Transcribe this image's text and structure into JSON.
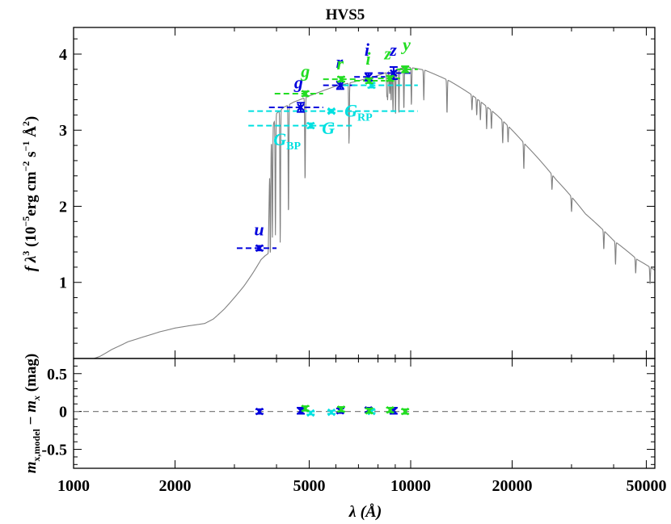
{
  "chart_data": {
    "type": "line",
    "title": "HVS5",
    "colors": {
      "model": "#808080",
      "sdss": "#0000dd",
      "gaia": "#00e0e0",
      "panstarrs": "#22dd22",
      "axis": "#000000"
    },
    "top_panel": {
      "xlim": [
        1000,
        53000
      ],
      "ylim": [
        0.0,
        4.35
      ],
      "xscale": "log",
      "yticks": [
        {
          "v": 1,
          "label": "1"
        },
        {
          "v": 2,
          "label": "2"
        },
        {
          "v": 3,
          "label": "3"
        },
        {
          "v": 4,
          "label": "4"
        }
      ],
      "ylabel": {
        "prefix": "f λ",
        "sup1": "3",
        "mid": " (10",
        "sup2": "−5",
        "mid2": "erg cm",
        "sup3": "−2",
        "mid3": " s",
        "sup4": "−1",
        "mid4": " Å",
        "sup5": "2",
        "suffix": ")"
      },
      "model_continuum": [
        [
          1150,
          0.0
        ],
        [
          1200,
          0.03
        ],
        [
          1300,
          0.12
        ],
        [
          1450,
          0.22
        ],
        [
          1600,
          0.28
        ],
        [
          1800,
          0.35
        ],
        [
          2000,
          0.4
        ],
        [
          2200,
          0.43
        ],
        [
          2450,
          0.46
        ],
        [
          2600,
          0.52
        ],
        [
          2800,
          0.65
        ],
        [
          3000,
          0.8
        ],
        [
          3200,
          0.95
        ],
        [
          3400,
          1.12
        ],
        [
          3600,
          1.3
        ],
        [
          3700,
          1.35
        ],
        [
          3780,
          1.38
        ],
        [
          3820,
          2.6
        ],
        [
          3900,
          3.05
        ],
        [
          4000,
          3.22
        ],
        [
          4200,
          3.3
        ],
        [
          4500,
          3.37
        ],
        [
          5000,
          3.45
        ],
        [
          5500,
          3.52
        ],
        [
          6000,
          3.58
        ],
        [
          7000,
          3.65
        ],
        [
          8000,
          3.72
        ],
        [
          9000,
          3.8
        ],
        [
          9800,
          3.83
        ],
        [
          11000,
          3.79
        ],
        [
          13000,
          3.65
        ],
        [
          15000,
          3.48
        ],
        [
          18000,
          3.2
        ],
        [
          22000,
          2.8
        ],
        [
          27000,
          2.35
        ],
        [
          33000,
          1.9
        ],
        [
          40000,
          1.55
        ],
        [
          47000,
          1.3
        ],
        [
          53000,
          1.16
        ]
      ],
      "model_absorption_lines": [
        {
          "w": 3835,
          "d": 1.35
        },
        {
          "w": 3889,
          "d": 1.4
        },
        {
          "w": 3970,
          "d": 1.55
        },
        {
          "w": 4102,
          "d": 1.75
        },
        {
          "w": 4340,
          "d": 1.45
        },
        {
          "w": 4861,
          "d": 1.1
        },
        {
          "w": 6563,
          "d": 0.8
        },
        {
          "w": 8500,
          "d": 0.3
        },
        {
          "w": 8545,
          "d": 0.35
        },
        {
          "w": 8665,
          "d": 0.3
        },
        {
          "w": 8750,
          "d": 0.4
        },
        {
          "w": 8863,
          "d": 0.55
        },
        {
          "w": 9015,
          "d": 0.6
        },
        {
          "w": 9229,
          "d": 0.6
        },
        {
          "w": 9546,
          "d": 0.55
        },
        {
          "w": 10049,
          "d": 0.5
        },
        {
          "w": 10938,
          "d": 0.4
        },
        {
          "w": 12818,
          "d": 0.45
        },
        {
          "w": 15200,
          "d": 0.2
        },
        {
          "w": 15700,
          "d": 0.22
        },
        {
          "w": 16100,
          "d": 0.25
        },
        {
          "w": 16800,
          "d": 0.3
        },
        {
          "w": 17360,
          "d": 0.25
        },
        {
          "w": 18750,
          "d": 0.3
        },
        {
          "w": 19450,
          "d": 0.22
        },
        {
          "w": 21660,
          "d": 0.35
        },
        {
          "w": 26250,
          "d": 0.2
        },
        {
          "w": 30000,
          "d": 0.2
        },
        {
          "w": 37400,
          "d": 0.25
        },
        {
          "w": 40520,
          "d": 0.3
        },
        {
          "w": 46500,
          "d": 0.2
        },
        {
          "w": 51300,
          "d": 0.22
        }
      ],
      "photometry": [
        {
          "band": "u",
          "system": "sdss",
          "wl": 3560,
          "wmin": 3050,
          "wmax": 4000,
          "y": 1.45,
          "err": 0.03,
          "label_wl": 3550,
          "label_y": 1.62
        },
        {
          "band": "g",
          "system": "sdss",
          "wl": 4720,
          "wmin": 3800,
          "wmax": 5500,
          "y": 3.3,
          "err": 0.06,
          "label_wl": 4650,
          "label_y": 3.55
        },
        {
          "band": "r",
          "system": "sdss",
          "wl": 6180,
          "wmin": 5500,
          "wmax": 7000,
          "y": 3.59,
          "err": 0.05,
          "label_wl": 6150,
          "label_y": 3.82
        },
        {
          "band": "i",
          "system": "sdss",
          "wl": 7500,
          "wmin": 6800,
          "wmax": 8400,
          "y": 3.7,
          "err": 0.05,
          "label_wl": 7420,
          "label_y": 3.98
        },
        {
          "band": "z",
          "system": "sdss",
          "wl": 8900,
          "wmin": 8000,
          "wmax": 10100,
          "y": 3.75,
          "err": 0.08,
          "label_wl": 8880,
          "label_y": 3.98
        },
        {
          "band": "G_BP",
          "system": "gaia",
          "wl": 5050,
          "wmin": 3300,
          "wmax": 6700,
          "y": 3.06,
          "err": 0.03,
          "label_main": "G",
          "label_sub": "BP",
          "label_wl": 4300,
          "label_y": 2.8
        },
        {
          "band": "G",
          "system": "gaia",
          "wl": 5820,
          "wmin": 3300,
          "wmax": 10500,
          "y": 3.25,
          "err": 0.02,
          "label_main": "G",
          "label_sub": "",
          "label_wl": 5700,
          "label_y": 2.95
        },
        {
          "band": "G_RP",
          "system": "gaia",
          "wl": 7650,
          "wmin": 6300,
          "wmax": 10500,
          "y": 3.59,
          "err": 0.03,
          "label_main": "G",
          "label_sub": "RP",
          "label_wl": 7000,
          "label_y": 3.18
        },
        {
          "band": "g",
          "system": "panstarrs",
          "wl": 4870,
          "wmin": 3950,
          "wmax": 5500,
          "y": 3.48,
          "err": 0.03,
          "label_wl": 4870,
          "label_y": 3.7
        },
        {
          "band": "r",
          "system": "panstarrs",
          "wl": 6220,
          "wmin": 5500,
          "wmax": 7000,
          "y": 3.67,
          "err": 0.03,
          "label_wl": 6180,
          "label_y": 3.8
        },
        {
          "band": "i",
          "system": "panstarrs",
          "wl": 7530,
          "wmin": 6800,
          "wmax": 8400,
          "y": 3.65,
          "err": 0.03,
          "label_wl": 7480,
          "label_y": 3.86
        },
        {
          "band": "z",
          "system": "panstarrs",
          "wl": 8690,
          "wmin": 8000,
          "wmax": 9300,
          "y": 3.68,
          "err": 0.03,
          "label_wl": 8550,
          "label_y": 3.93
        },
        {
          "band": "y",
          "system": "panstarrs",
          "wl": 9630,
          "wmin": 9100,
          "wmax": 10500,
          "y": 3.8,
          "err": 0.04,
          "label_wl": 9730,
          "label_y": 4.05
        }
      ]
    },
    "bottom_panel": {
      "xlim": [
        1000,
        53000
      ],
      "ylim": [
        -0.75,
        0.7
      ],
      "yticks": [
        {
          "v": 0.5,
          "label": "0.5"
        },
        {
          "v": 0,
          "label": "0"
        },
        {
          "v": -0.5,
          "label": "-0.5"
        }
      ],
      "ylabel": {
        "m": "m",
        "sub": "x,model",
        "minus": " − ",
        "m2": "m",
        "sub2": "x",
        "unit": " (mag)"
      },
      "residuals": [
        {
          "system": "sdss",
          "wl": 3560,
          "v": 0.0,
          "err": 0.03
        },
        {
          "system": "sdss",
          "wl": 4720,
          "v": 0.01,
          "err": 0.04
        },
        {
          "system": "sdss",
          "wl": 6180,
          "v": 0.01,
          "err": 0.03
        },
        {
          "system": "sdss",
          "wl": 7500,
          "v": 0.02,
          "err": 0.03
        },
        {
          "system": "sdss",
          "wl": 8900,
          "v": 0.01,
          "err": 0.04
        },
        {
          "system": "gaia",
          "wl": 5050,
          "v": -0.02,
          "err": 0.02
        },
        {
          "system": "gaia",
          "wl": 5820,
          "v": -0.01,
          "err": 0.02
        },
        {
          "system": "gaia",
          "wl": 7650,
          "v": 0.0,
          "err": 0.02
        },
        {
          "system": "panstarrs",
          "wl": 4870,
          "v": 0.04,
          "err": 0.03
        },
        {
          "system": "panstarrs",
          "wl": 6220,
          "v": 0.03,
          "err": 0.03
        },
        {
          "system": "panstarrs",
          "wl": 7530,
          "v": 0.01,
          "err": 0.03
        },
        {
          "system": "panstarrs",
          "wl": 8690,
          "v": 0.02,
          "err": 0.03
        },
        {
          "system": "panstarrs",
          "wl": 9630,
          "v": 0.0,
          "err": 0.03
        }
      ]
    },
    "xaxis": {
      "xticks": [
        {
          "v": 1000,
          "label": "1000"
        },
        {
          "v": 2000,
          "label": "2000"
        },
        {
          "v": 5000,
          "label": "5000"
        },
        {
          "v": 10000,
          "label": "10000"
        },
        {
          "v": 20000,
          "label": "20000"
        },
        {
          "v": 50000,
          "label": "50000"
        }
      ],
      "xlabel": "λ (Å)"
    }
  }
}
